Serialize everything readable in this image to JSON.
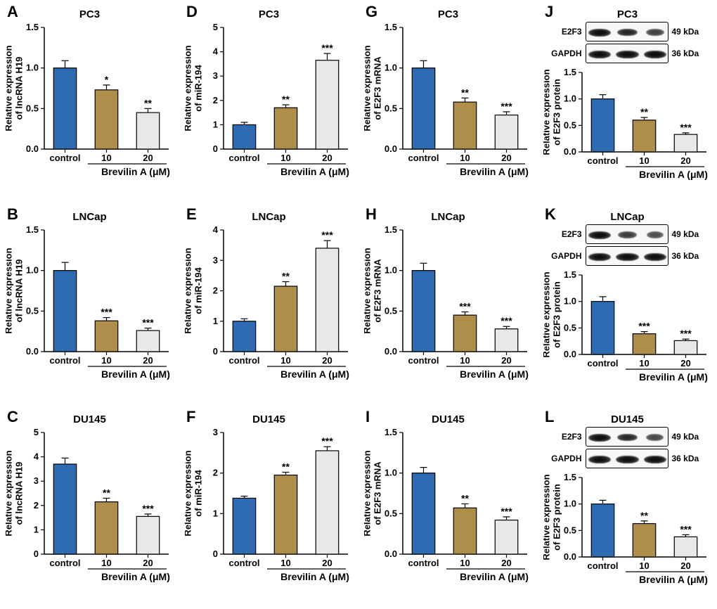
{
  "colors": {
    "bar_control": "#2f6bb3",
    "bar_10": "#af8d4b",
    "bar_20": "#e8e8e8",
    "bar_edge": "#000000",
    "axis": "#000000",
    "bg": "#ffffff"
  },
  "common": {
    "x_categories": [
      "control",
      "10",
      "20"
    ],
    "x_group_label": "Brevilin A (μM)",
    "tick_fontsize": 13,
    "axis_fontsize": 13,
    "title_fontsize": 15,
    "bar_width": 0.55,
    "bar_edge_width": 1.2
  },
  "panels": [
    {
      "id": "A",
      "row": 0,
      "col": 0,
      "cell_line": "PC3",
      "type": "bar",
      "ylabel": "Relative expression\nof lncRNA H19",
      "ylim": [
        0,
        1.5
      ],
      "ytick_step": 0.5,
      "values": [
        1.0,
        0.73,
        0.45
      ],
      "errors": [
        0.09,
        0.06,
        0.05
      ],
      "sig": [
        "",
        "*",
        "**"
      ]
    },
    {
      "id": "B",
      "row": 1,
      "col": 0,
      "cell_line": "LNCap",
      "type": "bar",
      "ylabel": "Relative expression\nof lncRNA H19",
      "ylim": [
        0,
        1.5
      ],
      "ytick_step": 0.5,
      "values": [
        1.0,
        0.38,
        0.26
      ],
      "errors": [
        0.1,
        0.04,
        0.03
      ],
      "sig": [
        "",
        "***",
        "***"
      ]
    },
    {
      "id": "C",
      "row": 2,
      "col": 0,
      "cell_line": "DU145",
      "type": "bar",
      "ylabel": "Relative expression\nof lncRNA H19",
      "ylim": [
        0,
        5
      ],
      "ytick_step": 1,
      "values": [
        3.7,
        2.15,
        1.55
      ],
      "errors": [
        0.25,
        0.15,
        0.1
      ],
      "sig": [
        "",
        "**",
        "***"
      ]
    },
    {
      "id": "D",
      "row": 0,
      "col": 1,
      "cell_line": "PC3",
      "type": "bar",
      "ylabel": "Relative expression\nof miR-194",
      "ylim": [
        0,
        5
      ],
      "ytick_step": 1,
      "values": [
        1.0,
        1.7,
        3.65
      ],
      "errors": [
        0.1,
        0.12,
        0.28
      ],
      "sig": [
        "",
        "**",
        "***"
      ]
    },
    {
      "id": "E",
      "row": 1,
      "col": 1,
      "cell_line": "LNCap",
      "type": "bar",
      "ylabel": "Relative expression\nof miR-194",
      "ylim": [
        0,
        4
      ],
      "ytick_step": 1,
      "values": [
        1.0,
        2.15,
        3.4
      ],
      "errors": [
        0.08,
        0.15,
        0.25
      ],
      "sig": [
        "",
        "**",
        "***"
      ]
    },
    {
      "id": "F",
      "row": 2,
      "col": 1,
      "cell_line": "DU145",
      "type": "bar",
      "ylabel": "Relative expression\nof miR-194",
      "ylim": [
        0,
        3
      ],
      "ytick_step": 1,
      "values": [
        1.38,
        1.95,
        2.55
      ],
      "errors": [
        0.05,
        0.07,
        0.1
      ],
      "sig": [
        "",
        "**",
        "***"
      ]
    },
    {
      "id": "G",
      "row": 0,
      "col": 2,
      "cell_line": "PC3",
      "type": "bar",
      "ylabel": "Relative expression\nof E2F3 mRNA",
      "ylim": [
        0,
        1.5
      ],
      "ytick_step": 0.5,
      "values": [
        1.0,
        0.58,
        0.42
      ],
      "errors": [
        0.09,
        0.05,
        0.04
      ],
      "sig": [
        "",
        "**",
        "***"
      ]
    },
    {
      "id": "H",
      "row": 1,
      "col": 2,
      "cell_line": "LNCap",
      "type": "bar",
      "ylabel": "Relative expression\nof E2F3 mRNA",
      "ylim": [
        0,
        1.5
      ],
      "ytick_step": 0.5,
      "values": [
        1.0,
        0.45,
        0.28
      ],
      "errors": [
        0.09,
        0.04,
        0.03
      ],
      "sig": [
        "",
        "***",
        "***"
      ]
    },
    {
      "id": "I",
      "row": 2,
      "col": 2,
      "cell_line": "DU145",
      "type": "bar",
      "ylabel": "Relative expression\nof E2F3 mRNA",
      "ylim": [
        0,
        1.5
      ],
      "ytick_step": 0.5,
      "values": [
        1.0,
        0.57,
        0.42
      ],
      "errors": [
        0.07,
        0.05,
        0.04
      ],
      "sig": [
        "",
        "**",
        "***"
      ]
    },
    {
      "id": "J",
      "row": 0,
      "col": 3,
      "cell_line": "PC3",
      "type": "westernbar",
      "ylabel": "Relative expression\nof E2F3 protein",
      "ylim": [
        0,
        1.5
      ],
      "ytick_step": 0.5,
      "values": [
        1.0,
        0.6,
        0.33
      ],
      "errors": [
        0.08,
        0.05,
        0.03
      ],
      "sig": [
        "",
        "**",
        "***"
      ],
      "blots": [
        {
          "label": "E2F3",
          "kda": "49 kDa",
          "intensities": [
            1.0,
            0.8,
            0.55
          ]
        },
        {
          "label": "GAPDH",
          "kda": "36 kDa",
          "intensities": [
            1.0,
            1.0,
            1.0
          ]
        }
      ]
    },
    {
      "id": "K",
      "row": 1,
      "col": 3,
      "cell_line": "LNCap",
      "type": "westernbar",
      "ylabel": "Relative expression\nof E2F3 protein",
      "ylim": [
        0,
        1.5
      ],
      "ytick_step": 0.5,
      "values": [
        1.0,
        0.39,
        0.26
      ],
      "errors": [
        0.09,
        0.04,
        0.03
      ],
      "sig": [
        "",
        "***",
        "***"
      ],
      "blots": [
        {
          "label": "E2F3",
          "kda": "49 kDa",
          "intensities": [
            1.0,
            0.6,
            0.45
          ]
        },
        {
          "label": "GAPDH",
          "kda": "36 kDa",
          "intensities": [
            1.0,
            1.0,
            1.0
          ]
        }
      ]
    },
    {
      "id": "L",
      "row": 2,
      "col": 3,
      "cell_line": "DU145",
      "type": "westernbar",
      "ylabel": "Relative expression\nof E2F3 protein",
      "ylim": [
        0,
        1.5
      ],
      "ytick_step": 0.5,
      "values": [
        1.0,
        0.63,
        0.38
      ],
      "errors": [
        0.07,
        0.05,
        0.04
      ],
      "sig": [
        "",
        "**",
        "***"
      ],
      "blots": [
        {
          "label": "E2F3",
          "kda": "49 kDa",
          "intensities": [
            1.0,
            0.78,
            0.5
          ]
        },
        {
          "label": "GAPDH",
          "kda": "36 kDa",
          "intensities": [
            1.0,
            1.0,
            1.0
          ]
        }
      ]
    }
  ]
}
